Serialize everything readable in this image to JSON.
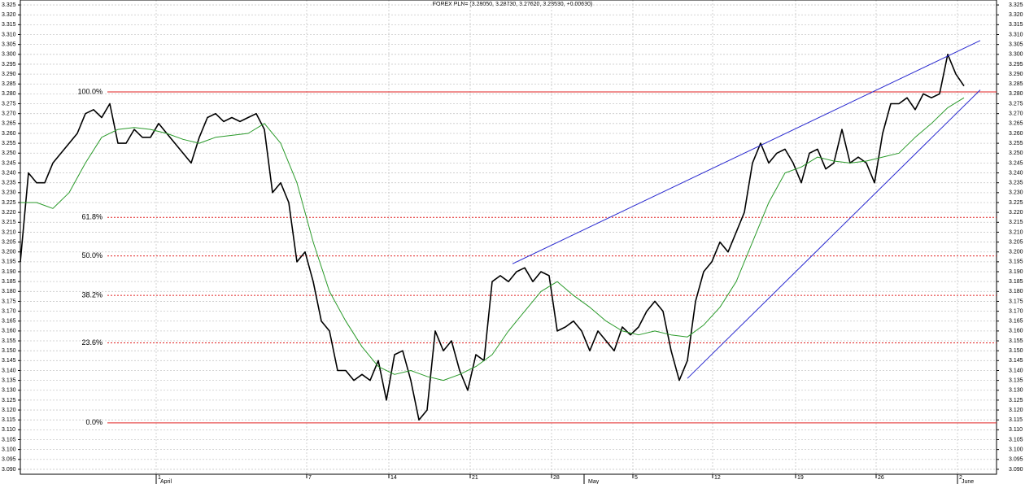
{
  "chart_data": {
    "type": "line",
    "title": "FOREX PLN= (3.28050, 3.28730, 3.27620, 3.28530, +0.00630)",
    "xlim": [
      0,
      240
    ],
    "ylim": [
      3.0875,
      3.3275
    ],
    "grid": true,
    "xticks": [
      {
        "value": 33.4,
        "label": "1"
      },
      {
        "value": 70.4,
        "label": "7"
      },
      {
        "value": 90.6,
        "label": "14"
      },
      {
        "value": 110.6,
        "label": "21"
      },
      {
        "value": 130.6,
        "label": "28"
      },
      {
        "value": 150.6,
        "label": "5"
      },
      {
        "value": 170.2,
        "label": "12"
      },
      {
        "value": 190.6,
        "label": "19"
      },
      {
        "value": 210.4,
        "label": "26"
      },
      {
        "value": 230.4,
        "label": "2"
      }
    ],
    "month_labels": [
      {
        "value": 33.4,
        "label": "April"
      },
      {
        "value": 138.6,
        "label": "May"
      },
      {
        "value": 230.4,
        "label": "June"
      }
    ],
    "yticks": [
      {
        "value": 3.09,
        "label": "3.090"
      },
      {
        "value": 3.095,
        "label": "3.095"
      },
      {
        "value": 3.1,
        "label": "3.100"
      },
      {
        "value": 3.105,
        "label": "3.105"
      },
      {
        "value": 3.11,
        "label": "3.110"
      },
      {
        "value": 3.115,
        "label": "3.115"
      },
      {
        "value": 3.12,
        "label": "3.120"
      },
      {
        "value": 3.125,
        "label": "3.125"
      },
      {
        "value": 3.13,
        "label": "3.130"
      },
      {
        "value": 3.135,
        "label": "3.135"
      },
      {
        "value": 3.14,
        "label": "3.140"
      },
      {
        "value": 3.145,
        "label": "3.145"
      },
      {
        "value": 3.15,
        "label": "3.150"
      },
      {
        "value": 3.155,
        "label": "3.155"
      },
      {
        "value": 3.16,
        "label": "3.160"
      },
      {
        "value": 3.165,
        "label": "3.165"
      },
      {
        "value": 3.17,
        "label": "3.170"
      },
      {
        "value": 3.175,
        "label": "3.175"
      },
      {
        "value": 3.18,
        "label": "3.180"
      },
      {
        "value": 3.185,
        "label": "3.185"
      },
      {
        "value": 3.19,
        "label": "3.190"
      },
      {
        "value": 3.195,
        "label": "3.195"
      },
      {
        "value": 3.2,
        "label": "3.200"
      },
      {
        "value": 3.205,
        "label": "3.205"
      },
      {
        "value": 3.21,
        "label": "3.210"
      },
      {
        "value": 3.215,
        "label": "3.215"
      },
      {
        "value": 3.22,
        "label": "3.220"
      },
      {
        "value": 3.225,
        "label": "3.225"
      },
      {
        "value": 3.23,
        "label": "3.230"
      },
      {
        "value": 3.235,
        "label": "3.235"
      },
      {
        "value": 3.24,
        "label": "3.240"
      },
      {
        "value": 3.245,
        "label": "3.245"
      },
      {
        "value": 3.25,
        "label": "3.250"
      },
      {
        "value": 3.255,
        "label": "3.255"
      },
      {
        "value": 3.26,
        "label": "3.260"
      },
      {
        "value": 3.265,
        "label": "3.265"
      },
      {
        "value": 3.27,
        "label": "3.270"
      },
      {
        "value": 3.275,
        "label": "3.275"
      },
      {
        "value": 3.28,
        "label": "3.280"
      },
      {
        "value": 3.285,
        "label": "3.285"
      },
      {
        "value": 3.29,
        "label": "3.290"
      },
      {
        "value": 3.295,
        "label": "3.295"
      },
      {
        "value": 3.3,
        "label": "3.300"
      },
      {
        "value": 3.305,
        "label": "3.305"
      },
      {
        "value": 3.31,
        "label": "3.310"
      },
      {
        "value": 3.315,
        "label": "3.315"
      },
      {
        "value": 3.32,
        "label": "3.320"
      },
      {
        "value": 3.325,
        "label": "3.325"
      }
    ],
    "series": [
      {
        "color": "#000000",
        "x": [
          0,
          2,
          4,
          6,
          8,
          10,
          12,
          14,
          16,
          18,
          20,
          22,
          24,
          26,
          28,
          30,
          32,
          34,
          36,
          38,
          40,
          42,
          44,
          46,
          48,
          50,
          52,
          54,
          56,
          58,
          60,
          62,
          64,
          66,
          68,
          70,
          72,
          74,
          76,
          78,
          80,
          82,
          84,
          86,
          88,
          90,
          92,
          94,
          96,
          98,
          100,
          102,
          104,
          106,
          108,
          110,
          112,
          114,
          116,
          118,
          120,
          122,
          124,
          126,
          128,
          130,
          132,
          134,
          136,
          138,
          140,
          142,
          144,
          146,
          148,
          150,
          152,
          154,
          156,
          158,
          160,
          162,
          164,
          166,
          168,
          170,
          172,
          174,
          176,
          178,
          180,
          182,
          184,
          186,
          188,
          190,
          192,
          194,
          196,
          198,
          200,
          202,
          204,
          206,
          208,
          210,
          212,
          214,
          216,
          218,
          220,
          222,
          224,
          226,
          228,
          230,
          232
        ],
        "values": [
          3.195,
          3.24,
          3.235,
          3.235,
          3.245,
          3.25,
          3.255,
          3.26,
          3.27,
          3.272,
          3.268,
          3.275,
          3.255,
          3.255,
          3.262,
          3.258,
          3.258,
          3.265,
          3.26,
          3.255,
          3.25,
          3.245,
          3.258,
          3.268,
          3.27,
          3.266,
          3.268,
          3.266,
          3.268,
          3.27,
          3.262,
          3.23,
          3.235,
          3.225,
          3.195,
          3.2,
          3.185,
          3.165,
          3.16,
          3.14,
          3.14,
          3.135,
          3.138,
          3.135,
          3.145,
          3.125,
          3.148,
          3.15,
          3.135,
          3.115,
          3.12,
          3.16,
          3.15,
          3.155,
          3.14,
          3.13,
          3.148,
          3.145,
          3.185,
          3.188,
          3.185,
          3.19,
          3.192,
          3.185,
          3.19,
          3.188,
          3.16,
          3.162,
          3.165,
          3.16,
          3.15,
          3.16,
          3.155,
          3.15,
          3.162,
          3.158,
          3.162,
          3.17,
          3.175,
          3.17,
          3.15,
          3.135,
          3.145,
          3.175,
          3.19,
          3.195,
          3.205,
          3.2,
          3.21,
          3.22,
          3.245,
          3.255,
          3.245,
          3.25,
          3.252,
          3.245,
          3.235,
          3.25,
          3.252,
          3.242,
          3.245,
          3.262,
          3.245,
          3.248,
          3.245,
          3.235,
          3.26,
          3.275,
          3.275,
          3.278,
          3.272,
          3.28,
          3.278,
          3.28,
          3.3,
          3.29,
          3.284
        ]
      },
      {
        "color": "#2a9a2a",
        "x": [
          0,
          4,
          8,
          12,
          16,
          20,
          24,
          28,
          32,
          36,
          40,
          44,
          48,
          52,
          56,
          60,
          64,
          68,
          72,
          76,
          80,
          84,
          88,
          92,
          96,
          100,
          104,
          108,
          112,
          116,
          120,
          124,
          128,
          132,
          136,
          140,
          144,
          148,
          152,
          156,
          160,
          164,
          168,
          172,
          176,
          180,
          184,
          188,
          192,
          196,
          200,
          204,
          208,
          212,
          216,
          220,
          224,
          228,
          232
        ],
        "values": [
          3.225,
          3.225,
          3.222,
          3.23,
          3.245,
          3.258,
          3.262,
          3.263,
          3.262,
          3.26,
          3.257,
          3.255,
          3.258,
          3.259,
          3.26,
          3.265,
          3.255,
          3.235,
          3.205,
          3.18,
          3.165,
          3.152,
          3.142,
          3.138,
          3.14,
          3.137,
          3.135,
          3.138,
          3.142,
          3.148,
          3.16,
          3.17,
          3.18,
          3.185,
          3.178,
          3.172,
          3.165,
          3.16,
          3.158,
          3.16,
          3.158,
          3.157,
          3.163,
          3.172,
          3.185,
          3.205,
          3.225,
          3.24,
          3.243,
          3.248,
          3.246,
          3.245,
          3.246,
          3.248,
          3.25,
          3.258,
          3.265,
          3.273,
          3.278
        ]
      }
    ],
    "trendlines": [
      {
        "color": "#2b2bd0",
        "x": [
          121,
          236
        ],
        "y": [
          3.194,
          3.307
        ]
      },
      {
        "color": "#2b2bd0",
        "x": [
          164,
          236
        ],
        "y": [
          3.136,
          3.282
        ]
      }
    ],
    "fib_levels": [
      {
        "label": "100.0%",
        "value": 3.281,
        "line_style": "solid"
      },
      {
        "label": "61.8%",
        "value": 3.2175,
        "line_style": "dotted"
      },
      {
        "label": "50.0%",
        "value": 3.198,
        "line_style": "dotted"
      },
      {
        "label": "38.2%",
        "value": 3.178,
        "line_style": "dotted"
      },
      {
        "label": "23.6%",
        "value": 3.154,
        "line_style": "dotted"
      },
      {
        "label": "0.0%",
        "value": 3.1135,
        "line_style": "solid"
      }
    ],
    "fib_color": "#e02020"
  }
}
